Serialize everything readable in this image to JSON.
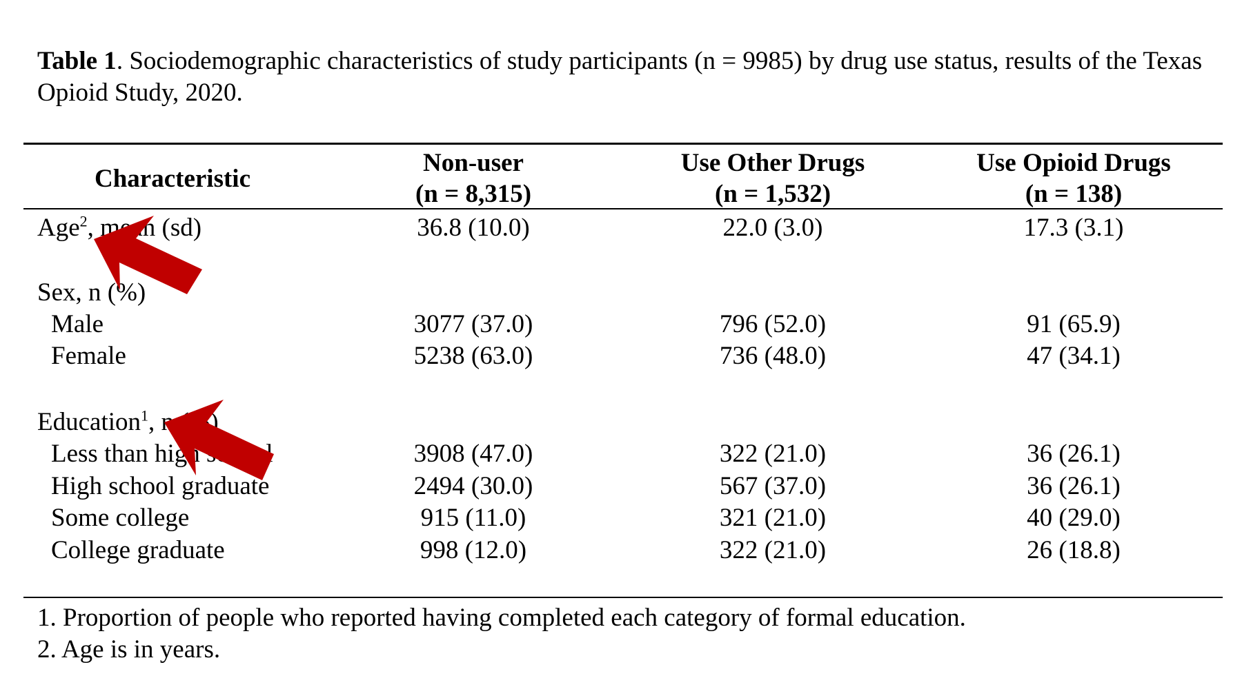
{
  "caption": {
    "label": "Table 1",
    "text": ". Sociodemographic characteristics of study participants (n = 9985) by drug use status, results of the Texas Opioid Study, 2020."
  },
  "table": {
    "header": {
      "characteristic": "Characteristic",
      "col1": {
        "name": "Non-user",
        "n": "(n = 8,315)"
      },
      "col2": {
        "name": "Use Other Drugs",
        "n": "(n = 1,532)"
      },
      "col3": {
        "name": "Use Opioid Drugs",
        "n": "(n = 138)"
      }
    },
    "age": {
      "label": "Age",
      "sup": "2",
      "suffix": ", mean (sd)",
      "v1": "36.8 (10.0)",
      "v2": "22.0 (3.0)",
      "v3": "17.3 (3.1)"
    },
    "sex": {
      "label": "Sex, n (%)",
      "rows": [
        {
          "label": "Male",
          "v1": "3077 (37.0)",
          "v2": "796 (52.0)",
          "v3": "91 (65.9)"
        },
        {
          "label": "Female",
          "v1": "5238 (63.0)",
          "v2": "736 (48.0)",
          "v3": "47 (34.1)"
        }
      ]
    },
    "education": {
      "label": "Education",
      "sup": "1",
      "suffix": ", n (%)",
      "rows": [
        {
          "label": "Less than high school",
          "v1": "3908 (47.0)",
          "v2": "322 (21.0)",
          "v3": "36 (26.1)"
        },
        {
          "label": "High school graduate",
          "v1": "2494 (30.0)",
          "v2": "567 (37.0)",
          "v3": "36 (26.1)"
        },
        {
          "label": "Some college",
          "v1": "915 (11.0)",
          "v2": "321 (21.0)",
          "v3": "40 (29.0)"
        },
        {
          "label": "College graduate",
          "v1": "998 (12.0)",
          "v2": "322 (21.0)",
          "v3": "26 (18.8)"
        }
      ]
    }
  },
  "footnotes": [
    "1. Proportion of people who reported having completed each category of formal education.",
    "2. Age is in years."
  ],
  "colors": {
    "arrow": "#c00000"
  }
}
